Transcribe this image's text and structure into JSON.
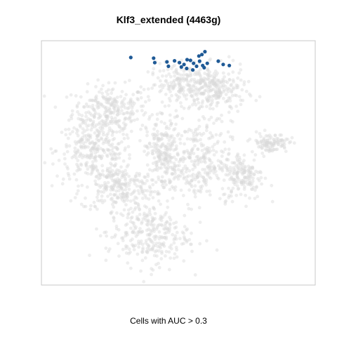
{
  "chart_data": {
    "type": "scatter",
    "title": "Klf3_extended (4463g)",
    "xlabel": "Cells with AUC > 0.3",
    "ylabel": "",
    "grid": false,
    "legend": "none",
    "colors": {
      "background_points": "#d9d9d9",
      "highlighted_points": "#1f5a96",
      "frame": "#c8c8c8"
    },
    "highlighted_points": [
      [
        -12.5,
        28.4
      ],
      [
        -6.5,
        28.2
      ],
      [
        -6.2,
        27.0
      ],
      [
        -3.0,
        27.2
      ],
      [
        -1.0,
        27.5
      ],
      [
        0.3,
        27.0
      ],
      [
        1.5,
        26.5
      ],
      [
        2.3,
        27.8
      ],
      [
        3.2,
        27.6
      ],
      [
        4.0,
        26.8
      ],
      [
        2.2,
        25.4
      ],
      [
        3.8,
        25.0
      ],
      [
        4.8,
        26.0
      ],
      [
        5.6,
        27.4
      ],
      [
        5.4,
        28.8
      ],
      [
        6.2,
        29.2
      ],
      [
        7.0,
        30.0
      ],
      [
        6.4,
        26.2
      ],
      [
        6.8,
        25.6
      ],
      [
        -2.6,
        26.0
      ],
      [
        0.8,
        25.8
      ],
      [
        10.5,
        27.4
      ],
      [
        11.8,
        26.5
      ],
      [
        13.4,
        26.2
      ],
      [
        7.6,
        26.8
      ]
    ],
    "background_regions": [
      {
        "region": "upper-left",
        "cx": -18,
        "cy": 14,
        "rx": 9,
        "ry": 6,
        "n": 260
      },
      {
        "region": "left",
        "cx": -22,
        "cy": 3,
        "rx": 9,
        "ry": 7,
        "n": 280
      },
      {
        "region": "lower-left",
        "cx": -16,
        "cy": -7,
        "rx": 9,
        "ry": 6,
        "n": 240
      },
      {
        "region": "center",
        "cx": -4,
        "cy": 2,
        "rx": 4,
        "ry": 9,
        "n": 200
      },
      {
        "region": "upper-center",
        "cx": 2,
        "cy": 21,
        "rx": 9,
        "ry": 5,
        "n": 220
      },
      {
        "region": "upper-right",
        "cx": 10,
        "cy": 19,
        "rx": 7,
        "ry": 6,
        "n": 200
      },
      {
        "region": "center-right",
        "cx": 5,
        "cy": 0,
        "rx": 8,
        "ry": 10,
        "n": 300
      },
      {
        "region": "right",
        "cx": 17,
        "cy": -4,
        "rx": 5,
        "ry": 6,
        "n": 160
      },
      {
        "region": "far-right",
        "cx": 24,
        "cy": 5,
        "rx": 4.5,
        "ry": 2.5,
        "n": 110
      },
      {
        "region": "bottom",
        "cx": -8,
        "cy": -20,
        "rx": 10,
        "ry": 8,
        "n": 300
      }
    ]
  }
}
